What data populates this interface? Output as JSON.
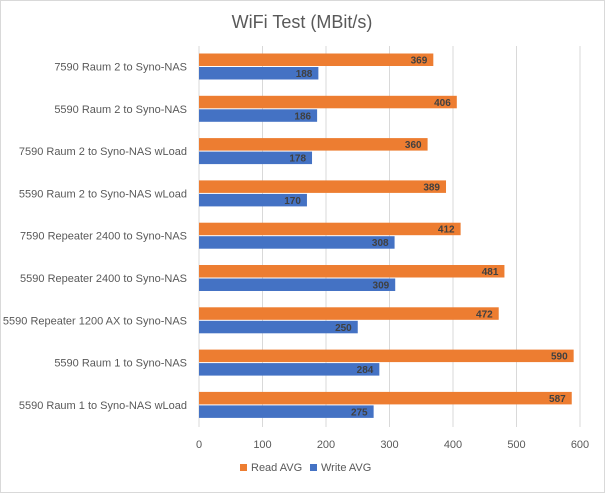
{
  "chart_data": {
    "type": "bar",
    "orientation": "horizontal",
    "title": "WiFi Test (MBit/s)",
    "categories": [
      "7590 Raum 2 to Syno-NAS",
      "5590 Raum 2 to Syno-NAS",
      "7590 Raum 2 to Syno-NAS wLoad",
      "5590 Raum 2 to Syno-NAS wLoad",
      "7590 Repeater 2400 to Syno-NAS",
      "5590 Repeater 2400 to Syno-NAS",
      "5590 Repeater 1200 AX to Syno-NAS",
      "5590 Raum 1 to Syno-NAS",
      "5590 Raum 1 to Syno-NAS wLoad"
    ],
    "series": [
      {
        "name": "Read AVG",
        "color": "#ed7d31",
        "values": [
          369,
          406,
          360,
          389,
          412,
          481,
          472,
          590,
          587
        ]
      },
      {
        "name": "Write AVG",
        "color": "#4472c4",
        "values": [
          188,
          186,
          178,
          170,
          308,
          309,
          250,
          284,
          275
        ]
      }
    ],
    "xlim": [
      0,
      600
    ],
    "xticks": [
      0,
      100,
      200,
      300,
      400,
      500,
      600
    ],
    "grid": true,
    "legend_position": "bottom"
  }
}
